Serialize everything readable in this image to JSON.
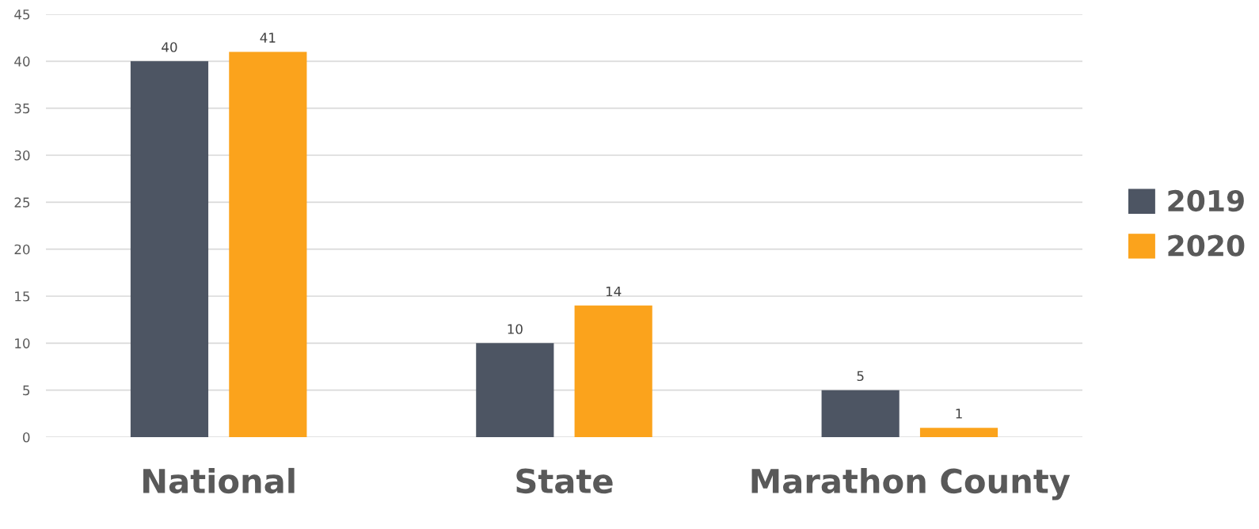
{
  "chart_data": {
    "type": "bar",
    "categories": [
      "National",
      "State",
      "Marathon County"
    ],
    "series": [
      {
        "name": "2019",
        "color": "#4d5563",
        "values": [
          40,
          10,
          5
        ]
      },
      {
        "name": "2020",
        "color": "#fba31c",
        "values": [
          41,
          14,
          1
        ]
      }
    ],
    "ylim": [
      0,
      45
    ],
    "yticks": [
      0,
      5,
      10,
      15,
      20,
      25,
      30,
      35,
      40,
      45
    ],
    "grid": "y",
    "legend": "right",
    "data_labels": true
  }
}
